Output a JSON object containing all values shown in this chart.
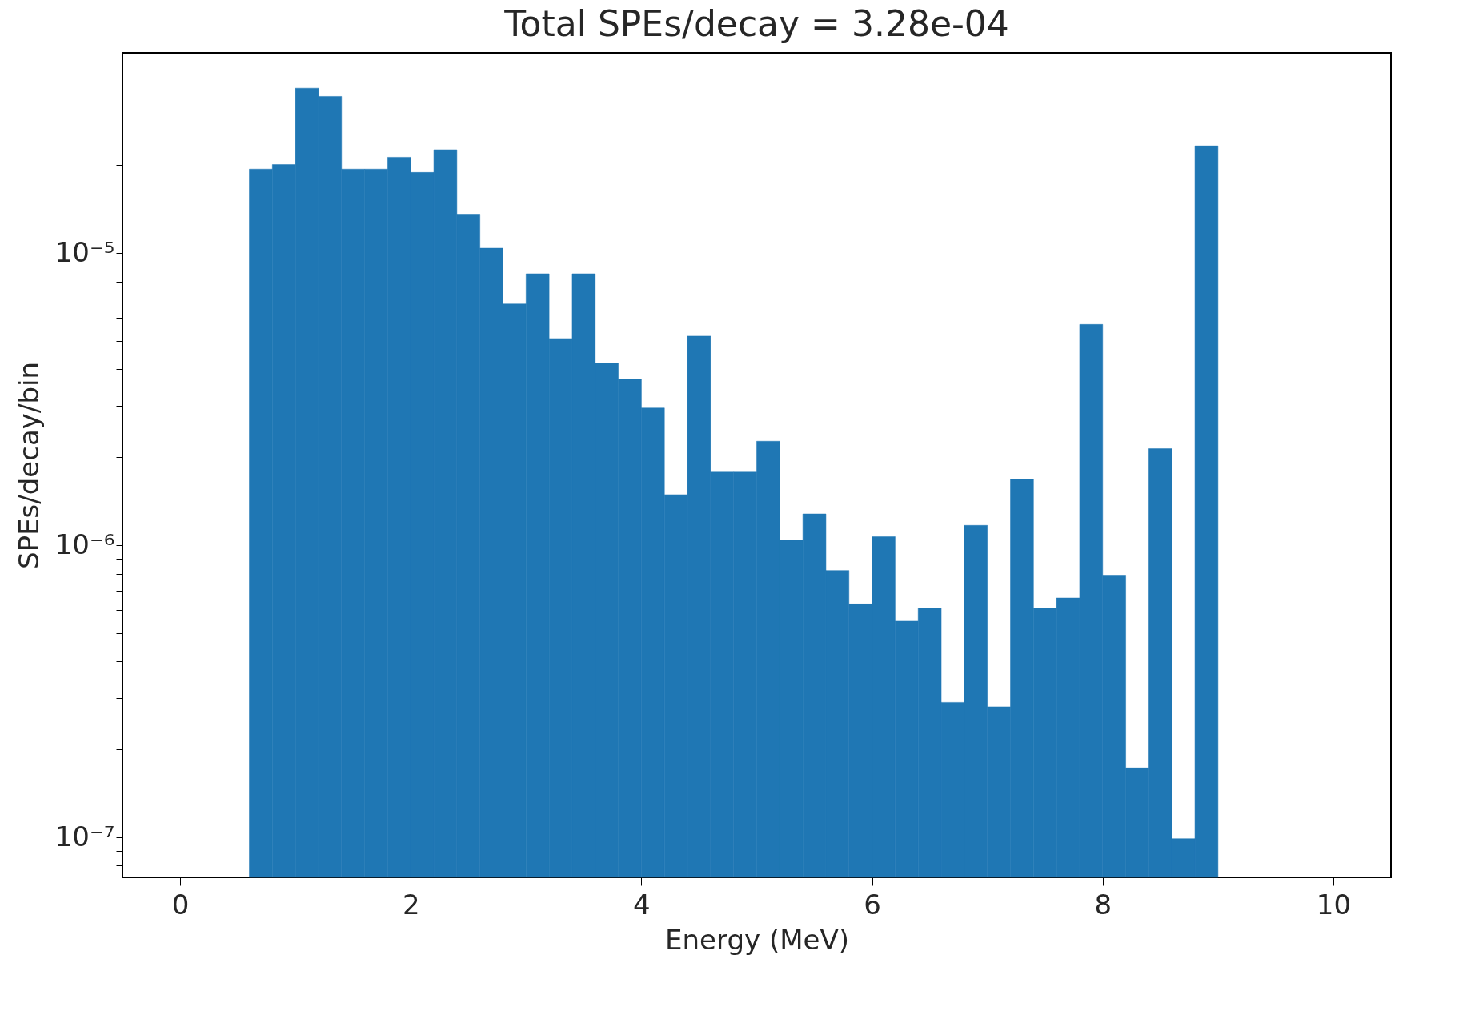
{
  "chart_data": {
    "type": "histogram",
    "title": "Total SPEs/decay = 3.28e-04",
    "xlabel": "Energy (MeV)",
    "ylabel": "SPEs/decay/bin",
    "color": "#1f77b4",
    "bins": [
      0.6,
      0.8,
      1.0,
      1.2,
      1.4,
      1.6,
      1.8,
      2.0,
      2.2,
      2.4,
      2.6,
      2.8,
      3.0,
      3.2,
      3.4,
      3.6,
      3.8,
      4.0,
      4.2,
      4.4,
      4.6,
      4.8,
      5.0,
      5.2,
      5.4,
      5.6,
      5.8,
      6.0,
      6.2,
      6.4,
      6.6,
      6.8,
      7.0,
      7.2,
      7.4,
      7.6,
      7.8,
      8.0,
      8.2,
      8.4,
      8.6,
      8.8,
      9.0
    ],
    "values": [
      1.94e-05,
      2.01e-05,
      3.67e-05,
      3.44e-05,
      1.94e-05,
      1.94e-05,
      2.13e-05,
      1.89e-05,
      2.26e-05,
      1.36e-05,
      1.04e-05,
      6.7e-06,
      8.5e-06,
      5.1e-06,
      8.5e-06,
      4.2e-06,
      3.7e-06,
      2.95e-06,
      1.49e-06,
      5.2e-06,
      1.78e-06,
      1.78e-06,
      2.27e-06,
      1.04e-06,
      1.28e-06,
      8.2e-07,
      6.3e-07,
      1.07e-06,
      5.5e-07,
      6.1e-07,
      2.9e-07,
      1.17e-06,
      2.8e-07,
      1.68e-06,
      6.1e-07,
      6.6e-07,
      5.7e-06,
      7.9e-07,
      1.73e-07,
      2.14e-06,
      9.9e-08,
      2.33e-05
    ],
    "log": "y",
    "xlim": [
      -0.5,
      10.5
    ],
    "xticks": [
      0,
      2,
      4,
      6,
      8,
      10
    ],
    "ylim": [
      7.3e-08,
      4.85e-05
    ],
    "yticks": [
      {
        "value": 8e-08,
        "label": null
      },
      {
        "value": 9e-08,
        "label": null
      },
      {
        "value": 1e-07,
        "label": "10⁻⁷"
      },
      {
        "value": 2e-07,
        "label": null
      },
      {
        "value": 3e-07,
        "label": null
      },
      {
        "value": 4e-07,
        "label": null
      },
      {
        "value": 5e-07,
        "label": null
      },
      {
        "value": 6e-07,
        "label": null
      },
      {
        "value": 7e-07,
        "label": null
      },
      {
        "value": 8e-07,
        "label": null
      },
      {
        "value": 9e-07,
        "label": null
      },
      {
        "value": 1e-06,
        "label": "10⁻⁶"
      },
      {
        "value": 2e-06,
        "label": null
      },
      {
        "value": 3e-06,
        "label": null
      },
      {
        "value": 4e-06,
        "label": null
      },
      {
        "value": 5e-06,
        "label": null
      },
      {
        "value": 6e-06,
        "label": null
      },
      {
        "value": 7e-06,
        "label": null
      },
      {
        "value": 8e-06,
        "label": null
      },
      {
        "value": 9e-06,
        "label": null
      },
      {
        "value": 1e-05,
        "label": "10⁻⁵"
      },
      {
        "value": 2e-05,
        "label": null
      },
      {
        "value": 3e-05,
        "label": null
      },
      {
        "value": 4e-05,
        "label": null
      }
    ],
    "grid": false
  }
}
